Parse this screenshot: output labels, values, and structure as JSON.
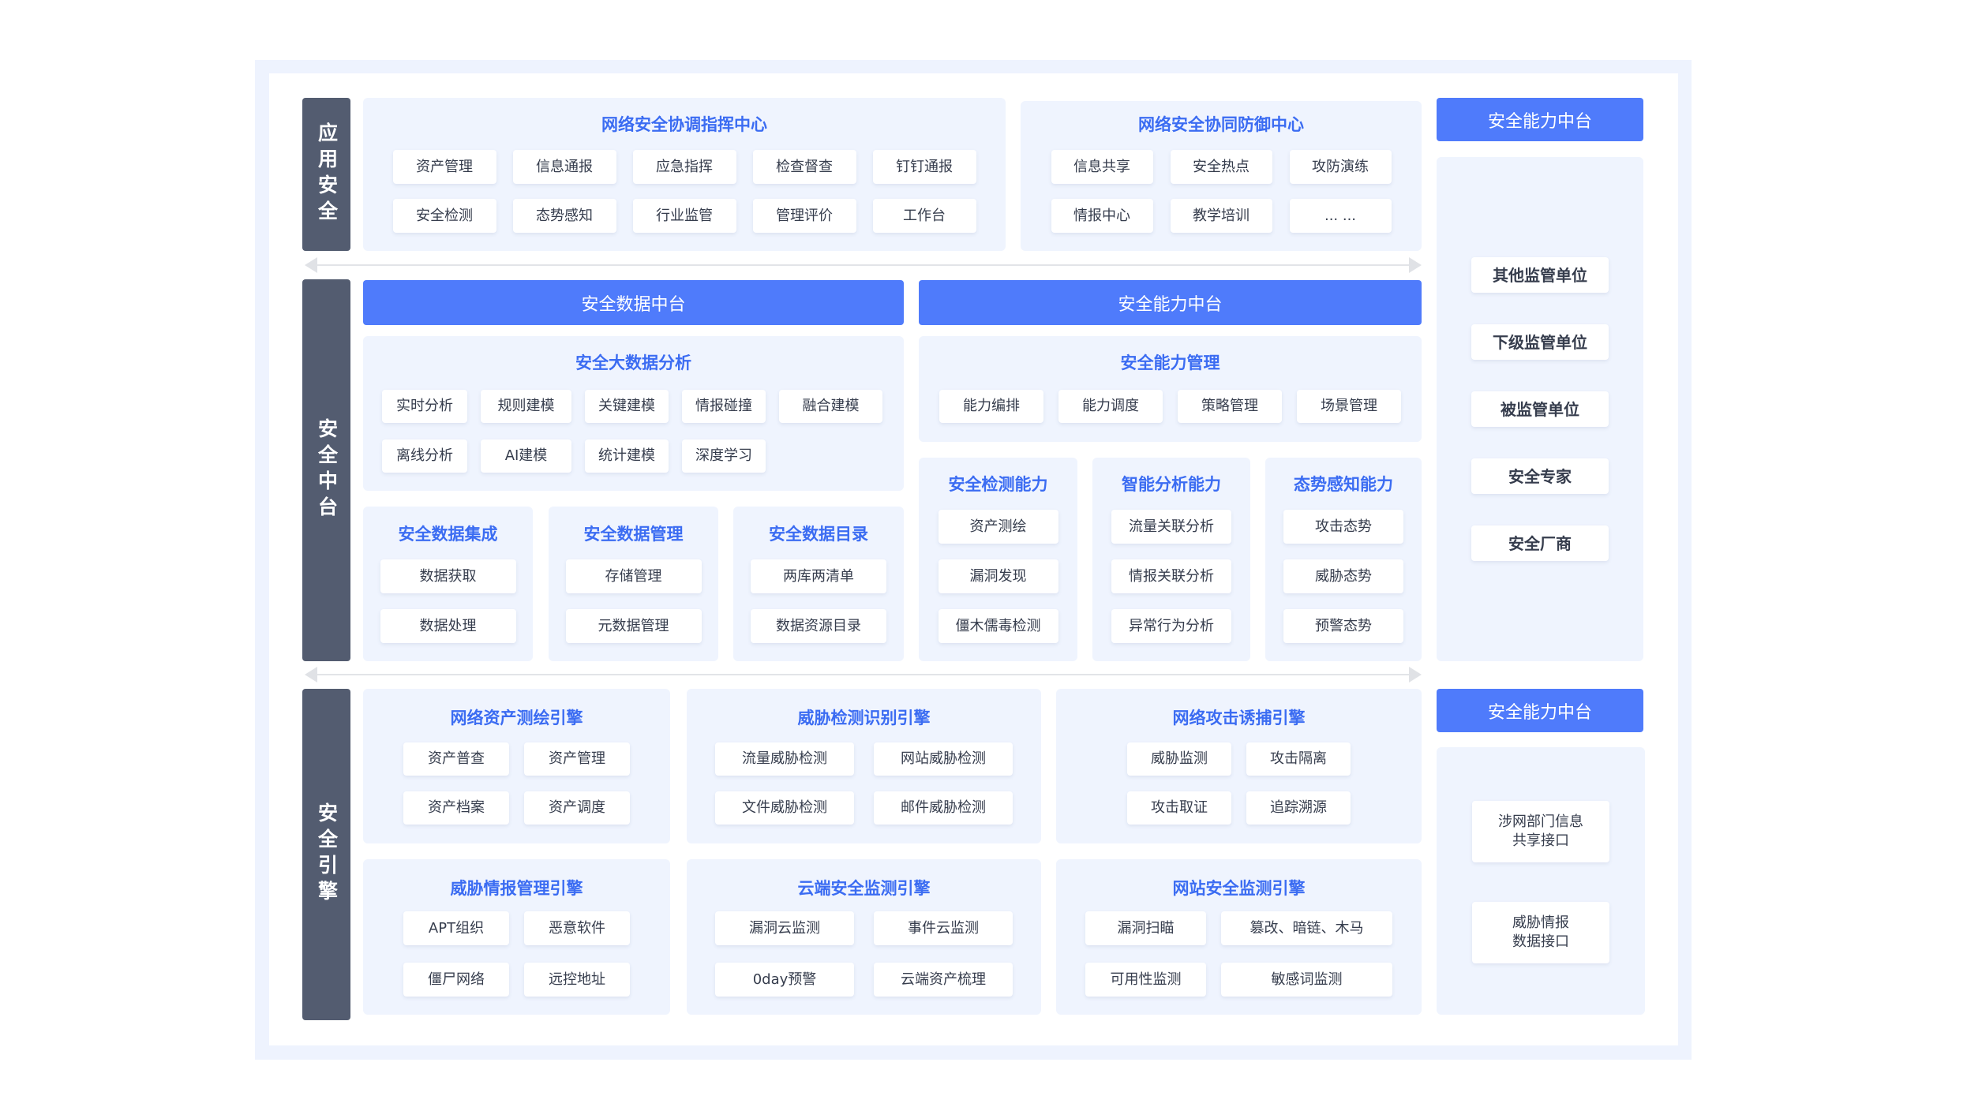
{
  "colors": {
    "layer_bg": "#535c70",
    "accent": "#4f7bfb",
    "panel_bg": "#eff4fe",
    "title": "#3b6cf2",
    "outer_bg": "#eef3fe"
  },
  "layers": {
    "app": "应用安全",
    "platform": "安全中台",
    "engine": "安全引擎"
  },
  "app_security": {
    "command_center": {
      "title": "网络安全协调指挥中心",
      "items": [
        "资产管理",
        "信息通报",
        "应急指挥",
        "检查督查",
        "钉钉通报",
        "安全检测",
        "态势感知",
        "行业监管",
        "管理评价",
        "工作台"
      ]
    },
    "defense_center": {
      "title": "网络安全协同防御中心",
      "items": [
        "信息共享",
        "安全热点",
        "攻防演练",
        "情报中心",
        "教学培训",
        "... ..."
      ]
    }
  },
  "platform": {
    "data_bar": "安全数据中台",
    "capability_bar": "安全能力中台",
    "big_data": {
      "title": "安全大数据分析",
      "items": [
        "实时分析",
        "规则建模",
        "关键建模",
        "情报碰撞",
        "融合建模",
        "离线分析",
        "AI建模",
        "统计建模",
        "深度学习"
      ]
    },
    "capability_mgmt": {
      "title": "安全能力管理",
      "items": [
        "能力编排",
        "能力调度",
        "策略管理",
        "场景管理"
      ]
    },
    "data_integration": {
      "title": "安全数据集成",
      "items": [
        "数据获取",
        "数据处理"
      ]
    },
    "data_management": {
      "title": "安全数据管理",
      "items": [
        "存储管理",
        "元数据管理"
      ]
    },
    "data_catalog": {
      "title": "安全数据目录",
      "items": [
        "两库两清单",
        "数据资源目录"
      ]
    },
    "detection": {
      "title": "安全检测能力",
      "items": [
        "资产测绘",
        "漏洞发现",
        "僵木儒毒检测"
      ]
    },
    "analysis": {
      "title": "智能分析能力",
      "items": [
        "流量关联分析",
        "情报关联分析",
        "异常行为分析"
      ]
    },
    "awareness": {
      "title": "态势感知能力",
      "items": [
        "攻击态势",
        "威胁态势",
        "预警态势"
      ]
    }
  },
  "engines": {
    "asset_mapping": {
      "title": "网络资产测绘引擎",
      "items": [
        "资产普查",
        "资产管理",
        "资产档案",
        "资产调度"
      ]
    },
    "threat_detection": {
      "title": "威胁检测识别引擎",
      "items": [
        "流量威胁检测",
        "网站威胁检测",
        "文件威胁检测",
        "邮件威胁检测"
      ]
    },
    "attack_trap": {
      "title": "网络攻击诱捕引擎",
      "items": [
        "威胁监测",
        "攻击隔离",
        "攻击取证",
        "追踪溯源"
      ]
    },
    "threat_intel": {
      "title": "威胁情报管理引擎",
      "items": [
        "APT组织",
        "恶意软件",
        "僵尸网络",
        "远控地址"
      ]
    },
    "cloud_monitor": {
      "title": "云端安全监测引擎",
      "items": [
        "漏洞云监测",
        "事件云监测",
        "0day预警",
        "云端资产梳理"
      ]
    },
    "web_monitor": {
      "title": "网站安全监测引擎",
      "items": [
        "漏洞扫瞄",
        "篡改、暗链、木马",
        "可用性监测",
        "敏感词监测"
      ]
    }
  },
  "right": {
    "top_header": "安全能力中台",
    "units": [
      "其他监管单位",
      "下级监管单位",
      "被监管单位",
      "安全专家",
      "安全厂商"
    ],
    "bottom_header": "安全能力中台",
    "interfaces": [
      "涉网部门信息\n共享接口",
      "威胁情报\n数据接口"
    ]
  }
}
